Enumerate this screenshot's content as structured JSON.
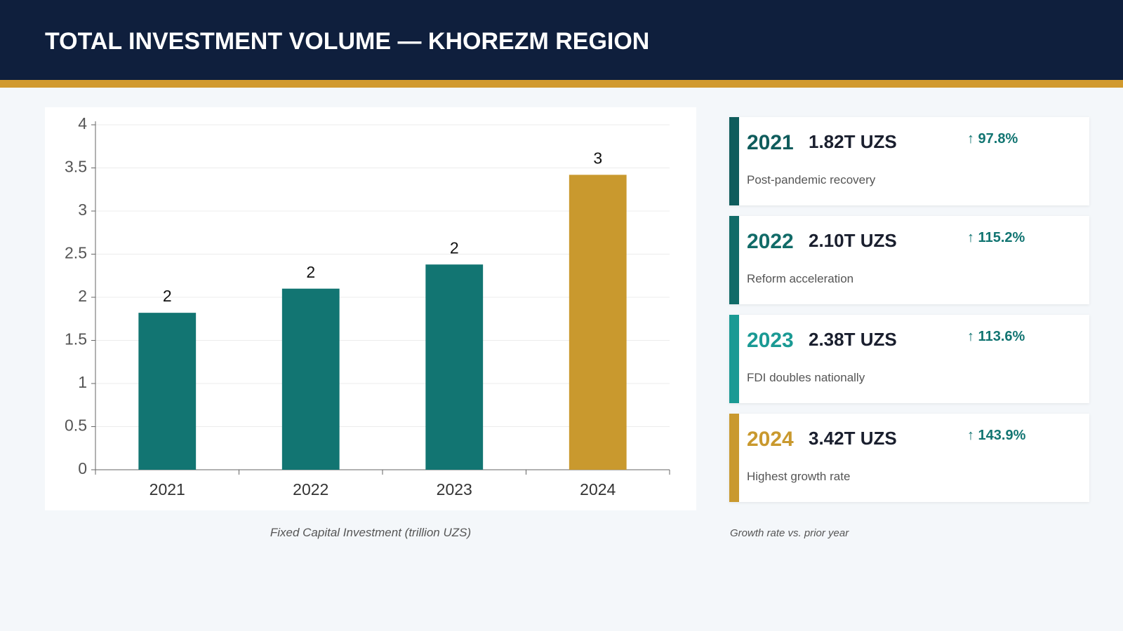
{
  "title": "TOTAL INVESTMENT VOLUME — KHOREZM REGION",
  "chart_data": {
    "type": "bar",
    "categories": [
      "2021",
      "2022",
      "2023",
      "2024"
    ],
    "values": [
      1.82,
      2.1,
      2.38,
      3.42
    ],
    "value_labels": [
      "2",
      "2",
      "2",
      "3"
    ],
    "colors": [
      "#127572",
      "#127572",
      "#127572",
      "#c9992e"
    ],
    "ylim": [
      0,
      4
    ],
    "yticks": [
      0,
      0.5,
      1,
      1.5,
      2,
      2.5,
      3,
      3.5,
      4
    ],
    "grid": true,
    "caption": "Fixed Capital Investment (trillion UZS)"
  },
  "cards": [
    {
      "year": "2021",
      "amount": "1.82T UZS",
      "growth": "↑ 97.8%",
      "note": "Post-pandemic recovery",
      "color": "#0f5c5c"
    },
    {
      "year": "2022",
      "amount": "2.10T UZS",
      "growth": "↑ 115.2%",
      "note": "Reform acceleration",
      "color": "#116b68"
    },
    {
      "year": "2023",
      "amount": "2.38T UZS",
      "growth": "↑ 113.6%",
      "note": "FDI doubles nationally",
      "color": "#1a9a94"
    },
    {
      "year": "2024",
      "amount": "3.42T UZS",
      "growth": "↑ 143.9%",
      "note": "Highest growth rate",
      "color": "#c9992e"
    }
  ],
  "cards_note": "Growth rate vs. prior year"
}
